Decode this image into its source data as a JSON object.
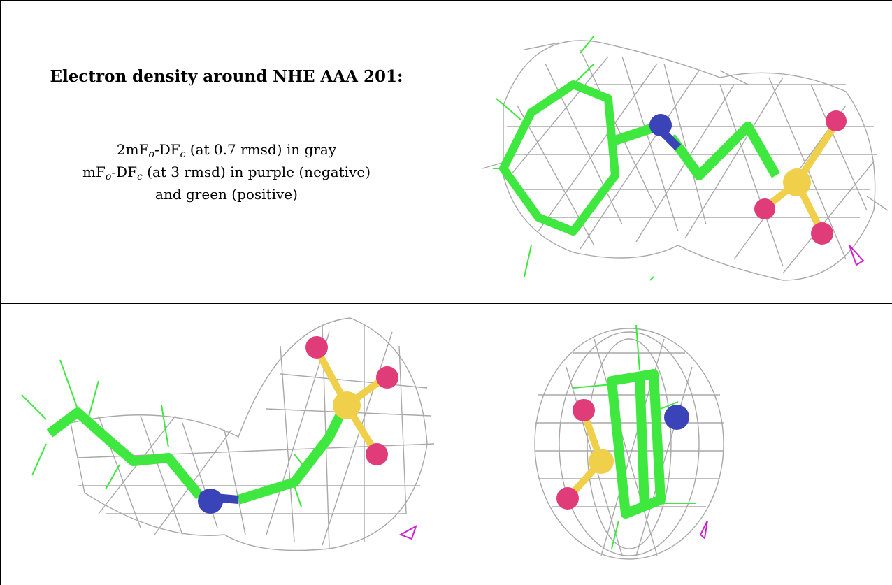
{
  "table": {
    "title": "Electron density around NHE AAA 201:",
    "legend": {
      "line1": {
        "pre": "2mF",
        "o": "o",
        "mid": "-DF",
        "c": "c",
        "post": " (at 0.7 rmsd) in gray"
      },
      "line2": {
        "pre": "mF",
        "o": "o",
        "mid": "-DF",
        "c": "c",
        "post": " (at 3 rmsd) in purple (negative)"
      },
      "line3": "and green (positive)"
    }
  },
  "colors": {
    "mesh_gray": "#a8a8a8",
    "carbon_green": "#3ee83e",
    "nitrogen_blue": "#3a44b8",
    "sulfur_yellow": "#f0cf4a",
    "oxygen_pink": "#e03c7a",
    "negative_purple": "#d020d0"
  },
  "views": [
    {
      "name": "top-right-view",
      "icon": "molecule-density-view"
    },
    {
      "name": "bottom-left-view",
      "icon": "molecule-density-view"
    },
    {
      "name": "bottom-right-view",
      "icon": "molecule-density-view"
    }
  ]
}
